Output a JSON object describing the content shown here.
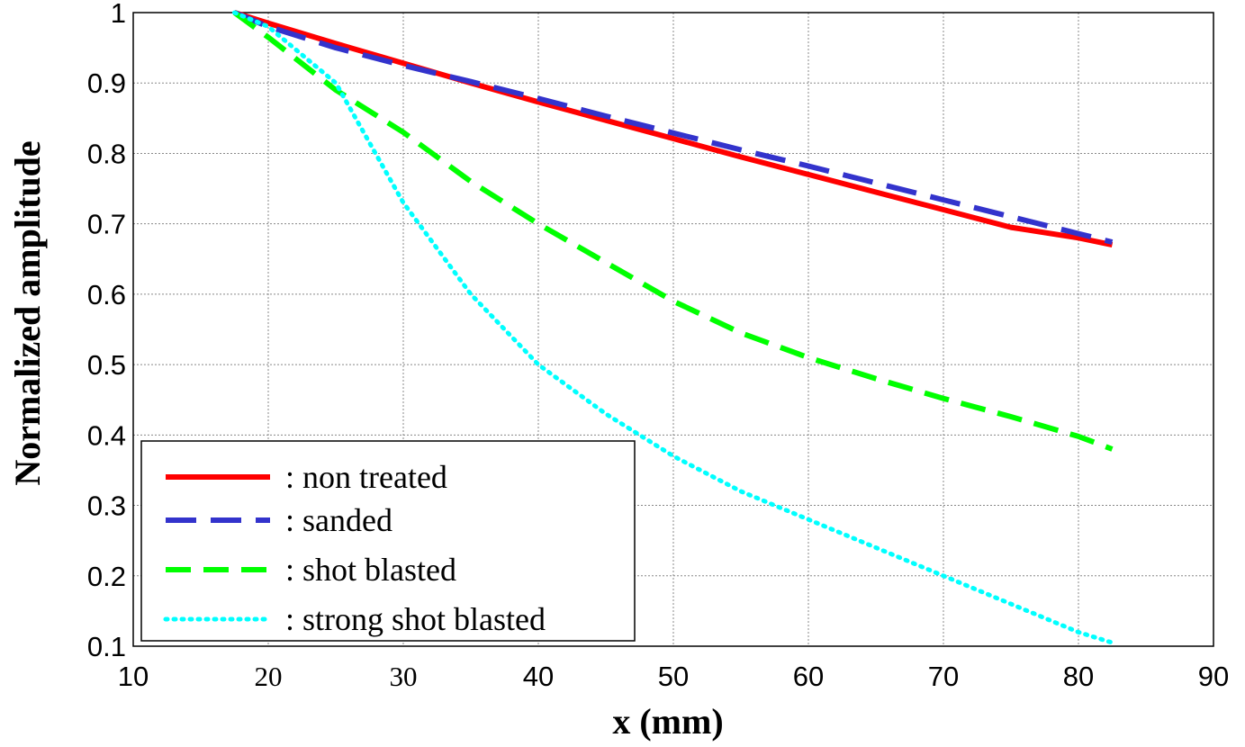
{
  "chart_data": {
    "type": "line",
    "title": "",
    "xlabel": "x (mm)",
    "ylabel": "Normalized amplitude",
    "xlim": [
      10,
      90
    ],
    "ylim": [
      0.1,
      1
    ],
    "grid": true,
    "legend_position": "bottom-left",
    "x_ticks": [
      {
        "value": 10,
        "label": "10",
        "font": "sans"
      },
      {
        "value": 20,
        "label": "20",
        "font": "serif"
      },
      {
        "value": 30,
        "label": "30",
        "font": "serif"
      },
      {
        "value": 40,
        "label": "40",
        "font": "sans"
      },
      {
        "value": 50,
        "label": "50",
        "font": "sans"
      },
      {
        "value": 60,
        "label": "60",
        "font": "sans"
      },
      {
        "value": 70,
        "label": "70",
        "font": "sans"
      },
      {
        "value": 80,
        "label": "80",
        "font": "sans"
      },
      {
        "value": 90,
        "label": "90",
        "font": "sans"
      }
    ],
    "y_ticks": [
      {
        "value": 0.1,
        "label": "0.1"
      },
      {
        "value": 0.2,
        "label": "0.2"
      },
      {
        "value": 0.3,
        "label": "0.3"
      },
      {
        "value": 0.4,
        "label": "0.4"
      },
      {
        "value": 0.5,
        "label": "0.5"
      },
      {
        "value": 0.6,
        "label": "0.6"
      },
      {
        "value": 0.7,
        "label": "0.7"
      },
      {
        "value": 0.8,
        "label": "0.8"
      },
      {
        "value": 0.9,
        "label": "0.9"
      },
      {
        "value": 1,
        "label": "1"
      }
    ],
    "series": [
      {
        "key": "non-treated",
        "name": ": non treated",
        "color": "#ff0000",
        "style": "solid",
        "x": [
          17.5,
          20,
          25,
          30,
          35,
          40,
          45,
          50,
          55,
          60,
          65,
          70,
          75,
          80,
          82.5
        ],
        "y": [
          1.0,
          0.985,
          0.956,
          0.928,
          0.9,
          0.873,
          0.847,
          0.821,
          0.795,
          0.77,
          0.745,
          0.72,
          0.695,
          0.68,
          0.67
        ]
      },
      {
        "key": "sanded",
        "name": ": sanded",
        "color": "#3333cc",
        "style": "dashed",
        "x": [
          17.5,
          20,
          25,
          30,
          35,
          40,
          45,
          50,
          55,
          60,
          65,
          70,
          75,
          80,
          82.5
        ],
        "y": [
          1.0,
          0.98,
          0.95,
          0.925,
          0.902,
          0.878,
          0.853,
          0.829,
          0.805,
          0.782,
          0.758,
          0.734,
          0.71,
          0.686,
          0.674
        ]
      },
      {
        "key": "shot-blasted",
        "name": ": shot blasted",
        "color": "#00ff00",
        "style": "dashed",
        "x": [
          17.5,
          20,
          25,
          30,
          35,
          40,
          45,
          50,
          55,
          60,
          65,
          70,
          75,
          80,
          82.5
        ],
        "y": [
          1.0,
          0.965,
          0.89,
          0.83,
          0.76,
          0.7,
          0.645,
          0.59,
          0.545,
          0.51,
          0.48,
          0.452,
          0.426,
          0.398,
          0.38
        ]
      },
      {
        "key": "strong-shot-blasted",
        "name": ": strong shot blasted",
        "color": "#00ffff",
        "style": "dotted",
        "x": [
          17.5,
          20,
          25,
          30,
          35,
          40,
          45,
          50,
          55,
          60,
          65,
          70,
          75,
          80,
          82.5
        ],
        "y": [
          1.0,
          0.98,
          0.9,
          0.73,
          0.6,
          0.5,
          0.43,
          0.37,
          0.32,
          0.28,
          0.24,
          0.2,
          0.16,
          0.12,
          0.105
        ]
      }
    ]
  }
}
